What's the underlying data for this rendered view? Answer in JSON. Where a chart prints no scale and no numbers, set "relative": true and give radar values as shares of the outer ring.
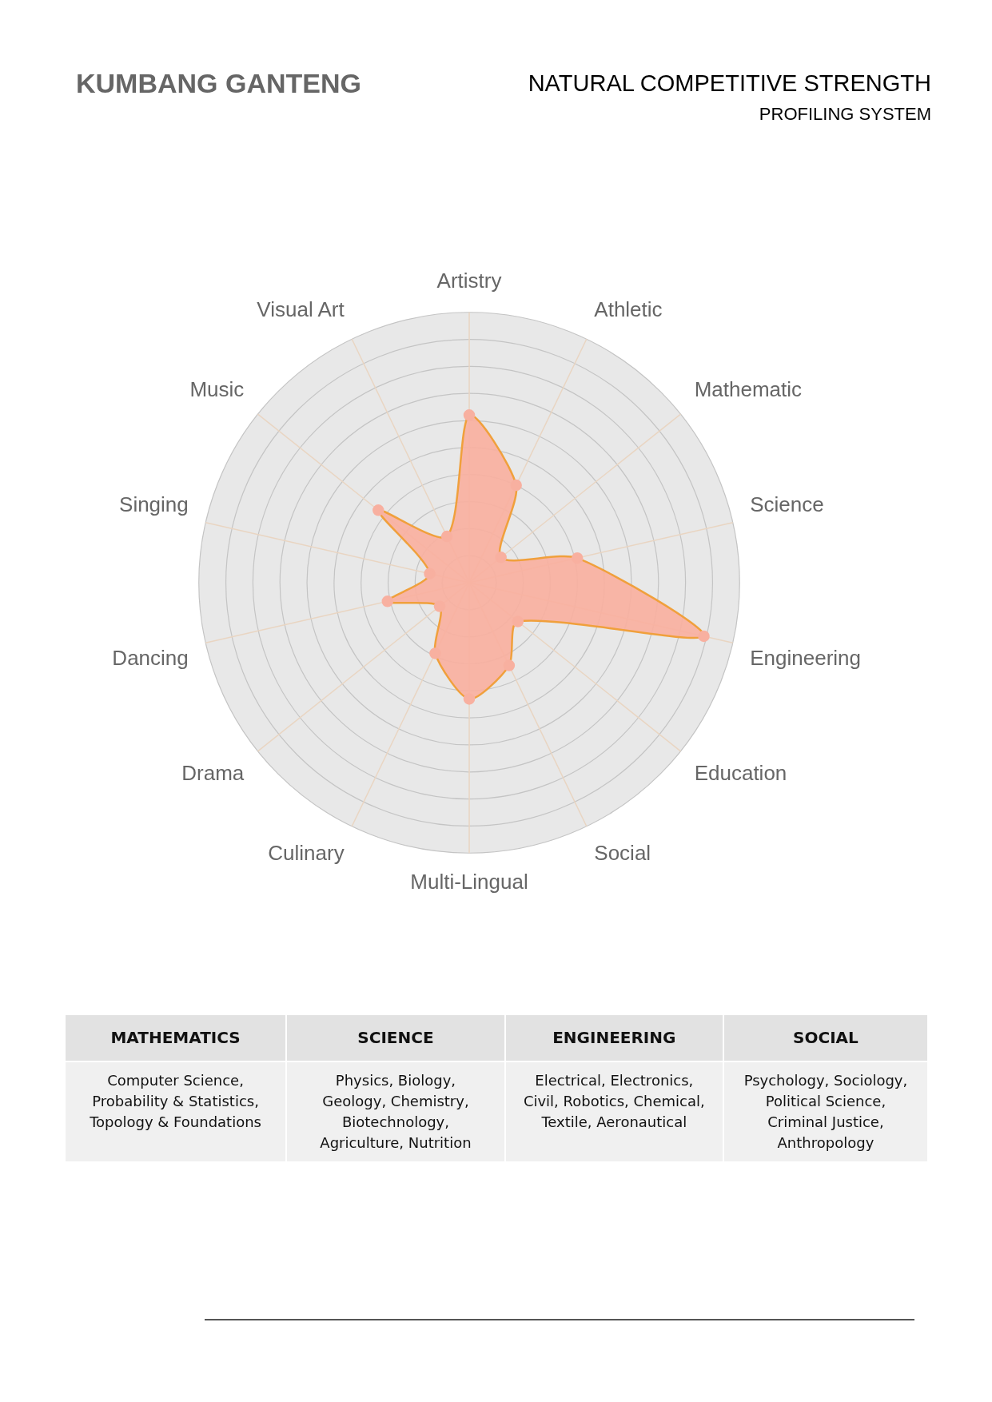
{
  "chart_data": {
    "type": "radar",
    "title": "NATURAL COMPETITIVE STRENGTH",
    "subtitle": "PROFILING SYSTEM",
    "relative": true,
    "grid": true,
    "legend": false,
    "marker": "circle",
    "categories": [
      "Artistry",
      "Athletic",
      "Mathematic",
      "Science",
      "Engineering",
      "Education",
      "Social",
      "Multi-Lingual",
      "Culinary",
      "Drama",
      "Dancing",
      "Singing",
      "Music",
      "Visual Art"
    ],
    "series": [
      {
        "color": "#f8b0a0",
        "values": [
          0.62,
          0.4,
          0.15,
          0.41,
          0.89,
          0.23,
          0.34,
          0.43,
          0.29,
          0.14,
          0.31,
          0.15,
          0.43,
          0.19
        ]
      }
    ],
    "annotations": [
      "KUMBANG GANTENG",
      "MATHEMATICS",
      "SCIENCE",
      "ENGINEERING",
      "SOCIAL",
      "Computer Science, Probability & Statistics, Topology & Foundations",
      "Physics, Biology, Geology, Chemistry, Biotechnology, Agriculture, Nutrition",
      "Electrical, Electronics, Civil, Robotics, Chemical, Textile, Aeronautical",
      "Psychology, Sociology, Political Science, Criminal Justice, Anthropology"
    ]
  }
}
